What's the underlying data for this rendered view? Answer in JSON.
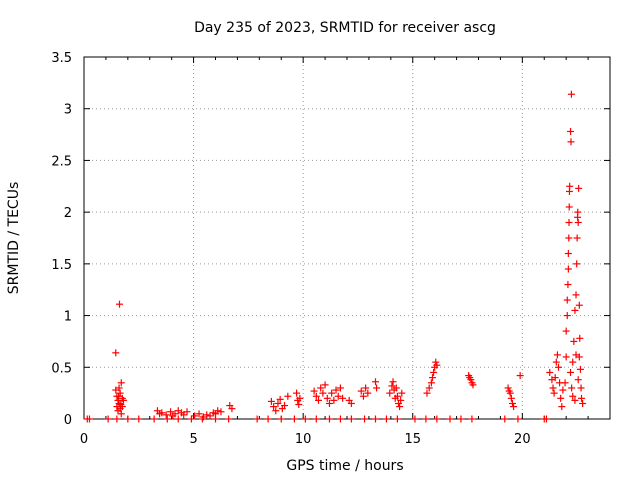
{
  "chart_data": {
    "type": "scatter",
    "title": "Day 235 of 2023, SRMTID for receiver ascg",
    "xlabel": "GPS time / hours",
    "ylabel": "SRMTID / TECUs",
    "xlim": [
      0,
      24
    ],
    "ylim": [
      0,
      3.5
    ],
    "xticks": [
      0,
      5,
      10,
      15,
      20
    ],
    "yticks": [
      0,
      0.5,
      1,
      1.5,
      2,
      2.5,
      3,
      3.5
    ],
    "ytick_labels": [
      "0",
      "0.5",
      "1",
      "1.5",
      "2",
      "2.5",
      "3",
      "3.5"
    ],
    "grid": true,
    "marker": "+",
    "color": "#ff0000",
    "series": [
      {
        "name": "SRMTID",
        "points": [
          [
            0.15,
            0.0
          ],
          [
            0.25,
            0.0
          ],
          [
            1.1,
            0.0
          ],
          [
            1.5,
            0.0
          ],
          [
            2.0,
            0.0
          ],
          [
            2.5,
            0.0
          ],
          [
            3.2,
            0.0
          ],
          [
            3.8,
            0.0
          ],
          [
            4.3,
            0.0
          ],
          [
            4.9,
            0.0
          ],
          [
            5.4,
            0.0
          ],
          [
            6.0,
            0.0
          ],
          [
            6.6,
            0.0
          ],
          [
            7.9,
            0.0
          ],
          [
            8.4,
            0.0
          ],
          [
            9.0,
            0.0
          ],
          [
            9.6,
            0.0
          ],
          [
            10.1,
            0.0
          ],
          [
            10.6,
            0.0
          ],
          [
            11.2,
            0.0
          ],
          [
            11.7,
            0.0
          ],
          [
            12.2,
            0.0
          ],
          [
            12.8,
            0.0
          ],
          [
            13.3,
            0.0
          ],
          [
            13.8,
            0.0
          ],
          [
            14.3,
            0.0
          ],
          [
            15.1,
            0.0
          ],
          [
            15.6,
            0.0
          ],
          [
            16.1,
            0.0
          ],
          [
            16.7,
            0.0
          ],
          [
            17.2,
            0.0
          ],
          [
            17.7,
            0.0
          ],
          [
            19.2,
            0.0
          ],
          [
            19.8,
            0.0
          ],
          [
            21.0,
            0.0
          ],
          [
            21.1,
            0.0
          ],
          [
            1.45,
            0.64
          ],
          [
            1.62,
            1.11
          ],
          [
            1.45,
            0.28
          ],
          [
            1.5,
            0.22
          ],
          [
            1.55,
            0.18
          ],
          [
            1.6,
            0.3
          ],
          [
            1.65,
            0.25
          ],
          [
            1.7,
            0.35
          ],
          [
            1.75,
            0.2
          ],
          [
            1.5,
            0.12
          ],
          [
            1.55,
            0.08
          ],
          [
            1.6,
            0.15
          ],
          [
            1.65,
            0.1
          ],
          [
            1.7,
            0.05
          ],
          [
            1.75,
            0.12
          ],
          [
            1.8,
            0.18
          ],
          [
            1.58,
            0.22
          ],
          [
            1.68,
            0.14
          ],
          [
            3.35,
            0.08
          ],
          [
            3.45,
            0.05
          ],
          [
            3.55,
            0.06
          ],
          [
            3.75,
            0.04
          ],
          [
            3.95,
            0.07
          ],
          [
            4.05,
            0.03
          ],
          [
            4.15,
            0.05
          ],
          [
            4.3,
            0.08
          ],
          [
            4.45,
            0.06
          ],
          [
            4.55,
            0.04
          ],
          [
            4.7,
            0.07
          ],
          [
            5.05,
            0.03
          ],
          [
            5.25,
            0.05
          ],
          [
            5.45,
            0.02
          ],
          [
            5.6,
            0.04
          ],
          [
            5.75,
            0.03
          ],
          [
            5.9,
            0.06
          ],
          [
            6.0,
            0.05
          ],
          [
            6.1,
            0.08
          ],
          [
            6.25,
            0.07
          ],
          [
            6.65,
            0.13
          ],
          [
            6.75,
            0.1
          ],
          [
            8.55,
            0.17
          ],
          [
            8.65,
            0.12
          ],
          [
            8.75,
            0.08
          ],
          [
            8.85,
            0.15
          ],
          [
            8.95,
            0.19
          ],
          [
            9.05,
            0.1
          ],
          [
            9.15,
            0.13
          ],
          [
            9.3,
            0.22
          ],
          [
            9.7,
            0.25
          ],
          [
            9.75,
            0.18
          ],
          [
            9.8,
            0.14
          ],
          [
            9.85,
            0.2
          ],
          [
            10.5,
            0.27
          ],
          [
            10.6,
            0.22
          ],
          [
            10.7,
            0.18
          ],
          [
            10.8,
            0.3
          ],
          [
            10.9,
            0.25
          ],
          [
            11.0,
            0.33
          ],
          [
            11.1,
            0.2
          ],
          [
            11.2,
            0.15
          ],
          [
            11.3,
            0.25
          ],
          [
            11.4,
            0.18
          ],
          [
            11.5,
            0.28
          ],
          [
            11.6,
            0.22
          ],
          [
            11.7,
            0.3
          ],
          [
            11.8,
            0.2
          ],
          [
            12.1,
            0.18
          ],
          [
            12.2,
            0.15
          ],
          [
            12.65,
            0.27
          ],
          [
            12.75,
            0.22
          ],
          [
            12.85,
            0.3
          ],
          [
            12.95,
            0.25
          ],
          [
            13.3,
            0.36
          ],
          [
            13.35,
            0.3
          ],
          [
            13.95,
            0.25
          ],
          [
            14.05,
            0.32
          ],
          [
            14.1,
            0.36
          ],
          [
            14.15,
            0.28
          ],
          [
            14.2,
            0.2
          ],
          [
            14.25,
            0.3
          ],
          [
            14.3,
            0.22
          ],
          [
            14.35,
            0.15
          ],
          [
            14.4,
            0.12
          ],
          [
            14.45,
            0.18
          ],
          [
            14.5,
            0.25
          ],
          [
            15.65,
            0.25
          ],
          [
            15.75,
            0.3
          ],
          [
            15.85,
            0.35
          ],
          [
            15.9,
            0.4
          ],
          [
            15.95,
            0.45
          ],
          [
            16.0,
            0.5
          ],
          [
            16.05,
            0.55
          ],
          [
            16.1,
            0.52
          ],
          [
            17.55,
            0.42
          ],
          [
            17.6,
            0.4
          ],
          [
            17.65,
            0.38
          ],
          [
            17.7,
            0.35
          ],
          [
            17.75,
            0.33
          ],
          [
            19.35,
            0.3
          ],
          [
            19.4,
            0.27
          ],
          [
            19.45,
            0.25
          ],
          [
            19.5,
            0.2
          ],
          [
            19.55,
            0.15
          ],
          [
            19.6,
            0.12
          ],
          [
            19.9,
            0.42
          ],
          [
            21.25,
            0.45
          ],
          [
            21.35,
            0.38
          ],
          [
            21.4,
            0.3
          ],
          [
            21.45,
            0.25
          ],
          [
            21.5,
            0.4
          ],
          [
            21.55,
            0.55
          ],
          [
            21.6,
            0.62
          ],
          [
            21.65,
            0.5
          ],
          [
            21.7,
            0.35
          ],
          [
            21.75,
            0.2
          ],
          [
            21.8,
            0.12
          ],
          [
            21.85,
            0.28
          ],
          [
            21.95,
            0.35
          ],
          [
            22.0,
            0.6
          ],
          [
            22.0,
            0.85
          ],
          [
            22.05,
            1.0
          ],
          [
            22.05,
            1.15
          ],
          [
            22.08,
            1.3
          ],
          [
            22.1,
            1.45
          ],
          [
            22.1,
            1.6
          ],
          [
            22.12,
            1.75
          ],
          [
            22.13,
            1.9
          ],
          [
            22.14,
            2.05
          ],
          [
            22.15,
            2.2
          ],
          [
            22.16,
            2.25
          ],
          [
            22.2,
            2.78
          ],
          [
            22.22,
            2.68
          ],
          [
            22.24,
            3.14
          ],
          [
            22.3,
            0.55
          ],
          [
            22.35,
            0.75
          ],
          [
            22.4,
            1.05
          ],
          [
            22.45,
            1.2
          ],
          [
            22.48,
            1.5
          ],
          [
            22.5,
            1.75
          ],
          [
            22.52,
            1.95
          ],
          [
            22.53,
            2.0
          ],
          [
            22.55,
            1.9
          ],
          [
            22.57,
            2.23
          ],
          [
            22.6,
            1.1
          ],
          [
            22.62,
            0.78
          ],
          [
            22.65,
            0.48
          ],
          [
            22.68,
            0.3
          ],
          [
            22.7,
            0.2
          ],
          [
            22.75,
            0.15
          ],
          [
            22.2,
            0.45
          ],
          [
            22.25,
            0.3
          ],
          [
            22.3,
            0.22
          ],
          [
            22.4,
            0.18
          ],
          [
            22.55,
            0.38
          ],
          [
            22.6,
            0.6
          ],
          [
            22.45,
            0.62
          ]
        ]
      }
    ]
  }
}
